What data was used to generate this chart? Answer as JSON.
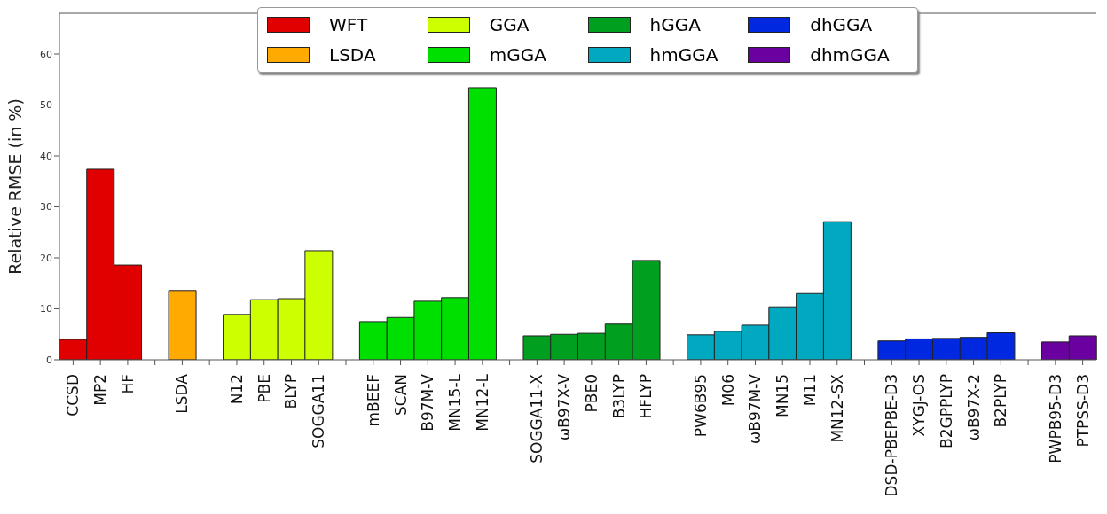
{
  "chart_data": {
    "type": "bar",
    "ylabel": "Relative RMSE (in %)",
    "categories": [
      "CCSD",
      "MP2",
      "HF",
      null,
      "LSDA",
      null,
      "N12",
      "PBE",
      "BLYP",
      "SOGGA11",
      null,
      "mBEEF",
      "SCAN",
      "B97M-V",
      "MN15-L",
      "MN12-L",
      null,
      "SOGGA11-X",
      "ωB97X-V",
      "PBE0",
      "B3LYP",
      "HFLYP",
      null,
      "PW6B95",
      "M06",
      "ωB97M-V",
      "MN15",
      "M11",
      "MN12-SX",
      null,
      "DSD-PBEPBE-D3",
      "XYGJ-OS",
      "B2GPPLYP",
      "ωB97X-2",
      "B2PLYP",
      null,
      "PWPB95-D3",
      "PTPSS-D3"
    ],
    "series": [
      {
        "name": "WFT",
        "color": "#e00000",
        "values": [
          4.0,
          37.4,
          18.6,
          null,
          null,
          null,
          null,
          null,
          null,
          null,
          null,
          null,
          null,
          null,
          null,
          null,
          null,
          null,
          null,
          null,
          null,
          null,
          null,
          null,
          null,
          null,
          null,
          null,
          null,
          null,
          null,
          null,
          null,
          null,
          null,
          null,
          null,
          null
        ]
      },
      {
        "name": "LSDA",
        "color": "#ffaa00",
        "values": [
          null,
          null,
          null,
          null,
          13.6,
          null,
          null,
          null,
          null,
          null,
          null,
          null,
          null,
          null,
          null,
          null,
          null,
          null,
          null,
          null,
          null,
          null,
          null,
          null,
          null,
          null,
          null,
          null,
          null,
          null,
          null,
          null,
          null,
          null,
          null,
          null,
          null,
          null
        ]
      },
      {
        "name": "GGA",
        "color": "#ccff00",
        "values": [
          null,
          null,
          null,
          null,
          null,
          null,
          8.9,
          11.8,
          12.0,
          21.4,
          null,
          null,
          null,
          null,
          null,
          null,
          null,
          null,
          null,
          null,
          null,
          null,
          null,
          null,
          null,
          null,
          null,
          null,
          null,
          null,
          null,
          null,
          null,
          null,
          null,
          null,
          null,
          null
        ]
      },
      {
        "name": "mGGA",
        "color": "#00e000",
        "values": [
          null,
          null,
          null,
          null,
          null,
          null,
          null,
          null,
          null,
          null,
          null,
          7.5,
          8.3,
          11.5,
          12.2,
          53.4,
          null,
          null,
          null,
          null,
          null,
          null,
          null,
          null,
          null,
          null,
          null,
          null,
          null,
          null,
          null,
          null,
          null,
          null,
          null,
          null,
          null,
          null
        ]
      },
      {
        "name": "hGGA",
        "color": "#009f20",
        "values": [
          null,
          null,
          null,
          null,
          null,
          null,
          null,
          null,
          null,
          null,
          null,
          null,
          null,
          null,
          null,
          null,
          null,
          4.7,
          5.0,
          5.2,
          7.0,
          19.5,
          null,
          null,
          null,
          null,
          null,
          null,
          null,
          null,
          null,
          null,
          null,
          null,
          null,
          null,
          null,
          null
        ]
      },
      {
        "name": "hmGGA",
        "color": "#00a8c0",
        "values": [
          null,
          null,
          null,
          null,
          null,
          null,
          null,
          null,
          null,
          null,
          null,
          null,
          null,
          null,
          null,
          null,
          null,
          null,
          null,
          null,
          null,
          null,
          null,
          4.9,
          5.6,
          6.8,
          10.4,
          13.0,
          27.1,
          null,
          null,
          null,
          null,
          null,
          null,
          null,
          null,
          null
        ]
      },
      {
        "name": "dhGGA",
        "color": "#0028e0",
        "values": [
          null,
          null,
          null,
          null,
          null,
          null,
          null,
          null,
          null,
          null,
          null,
          null,
          null,
          null,
          null,
          null,
          null,
          null,
          null,
          null,
          null,
          null,
          null,
          null,
          null,
          null,
          null,
          null,
          null,
          null,
          3.7,
          4.1,
          4.2,
          4.4,
          5.3,
          null,
          null,
          null
        ]
      },
      {
        "name": "dhmGGA",
        "color": "#6a00a0",
        "values": [
          null,
          null,
          null,
          null,
          null,
          null,
          null,
          null,
          null,
          null,
          null,
          null,
          null,
          null,
          null,
          null,
          null,
          null,
          null,
          null,
          null,
          null,
          null,
          null,
          null,
          null,
          null,
          null,
          null,
          null,
          null,
          null,
          null,
          null,
          null,
          null,
          3.5,
          4.7
        ]
      }
    ],
    "ylim": [
      0,
      68
    ],
    "yticks": [
      0,
      10,
      20,
      30,
      40,
      50,
      60
    ],
    "grid": false,
    "legend": "top"
  }
}
